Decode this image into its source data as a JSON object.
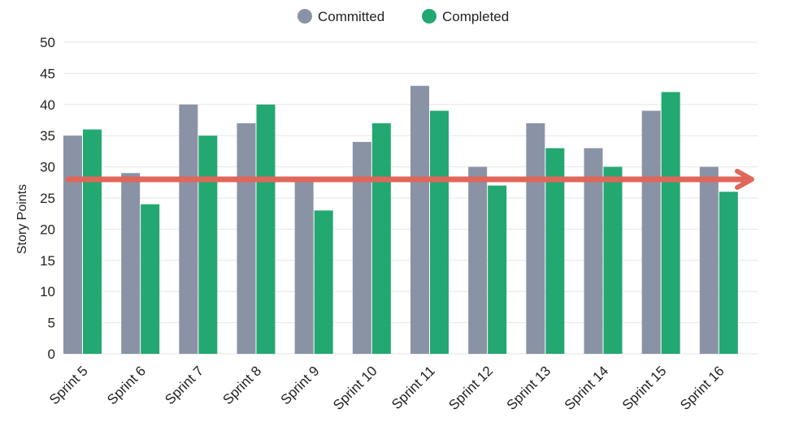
{
  "chart_data": {
    "type": "bar",
    "title": "",
    "xlabel": "",
    "ylabel": "Story Points",
    "ylim": [
      0,
      50
    ],
    "yticks": [
      0,
      5,
      10,
      15,
      20,
      25,
      30,
      35,
      40,
      45,
      50
    ],
    "grid": true,
    "legend_position": "top-center",
    "categories": [
      "Sprint 5",
      "Sprint 6",
      "Sprint 7",
      "Sprint 8",
      "Sprint 9",
      "Sprint 10",
      "Sprint 11",
      "Sprint 12",
      "Sprint 13",
      "Sprint 14",
      "Sprint 15",
      "Sprint 16"
    ],
    "series": [
      {
        "name": "Committed",
        "color": "#8a93a6",
        "values": [
          35,
          29,
          40,
          37,
          28,
          34,
          43,
          30,
          37,
          33,
          39,
          30
        ]
      },
      {
        "name": "Completed",
        "color": "#23a872",
        "values": [
          36,
          24,
          35,
          40,
          23,
          37,
          39,
          27,
          33,
          30,
          42,
          26
        ]
      }
    ],
    "annotations": [
      {
        "type": "arrow",
        "direction": "right",
        "y": 28,
        "color": "#e0665a"
      }
    ]
  }
}
